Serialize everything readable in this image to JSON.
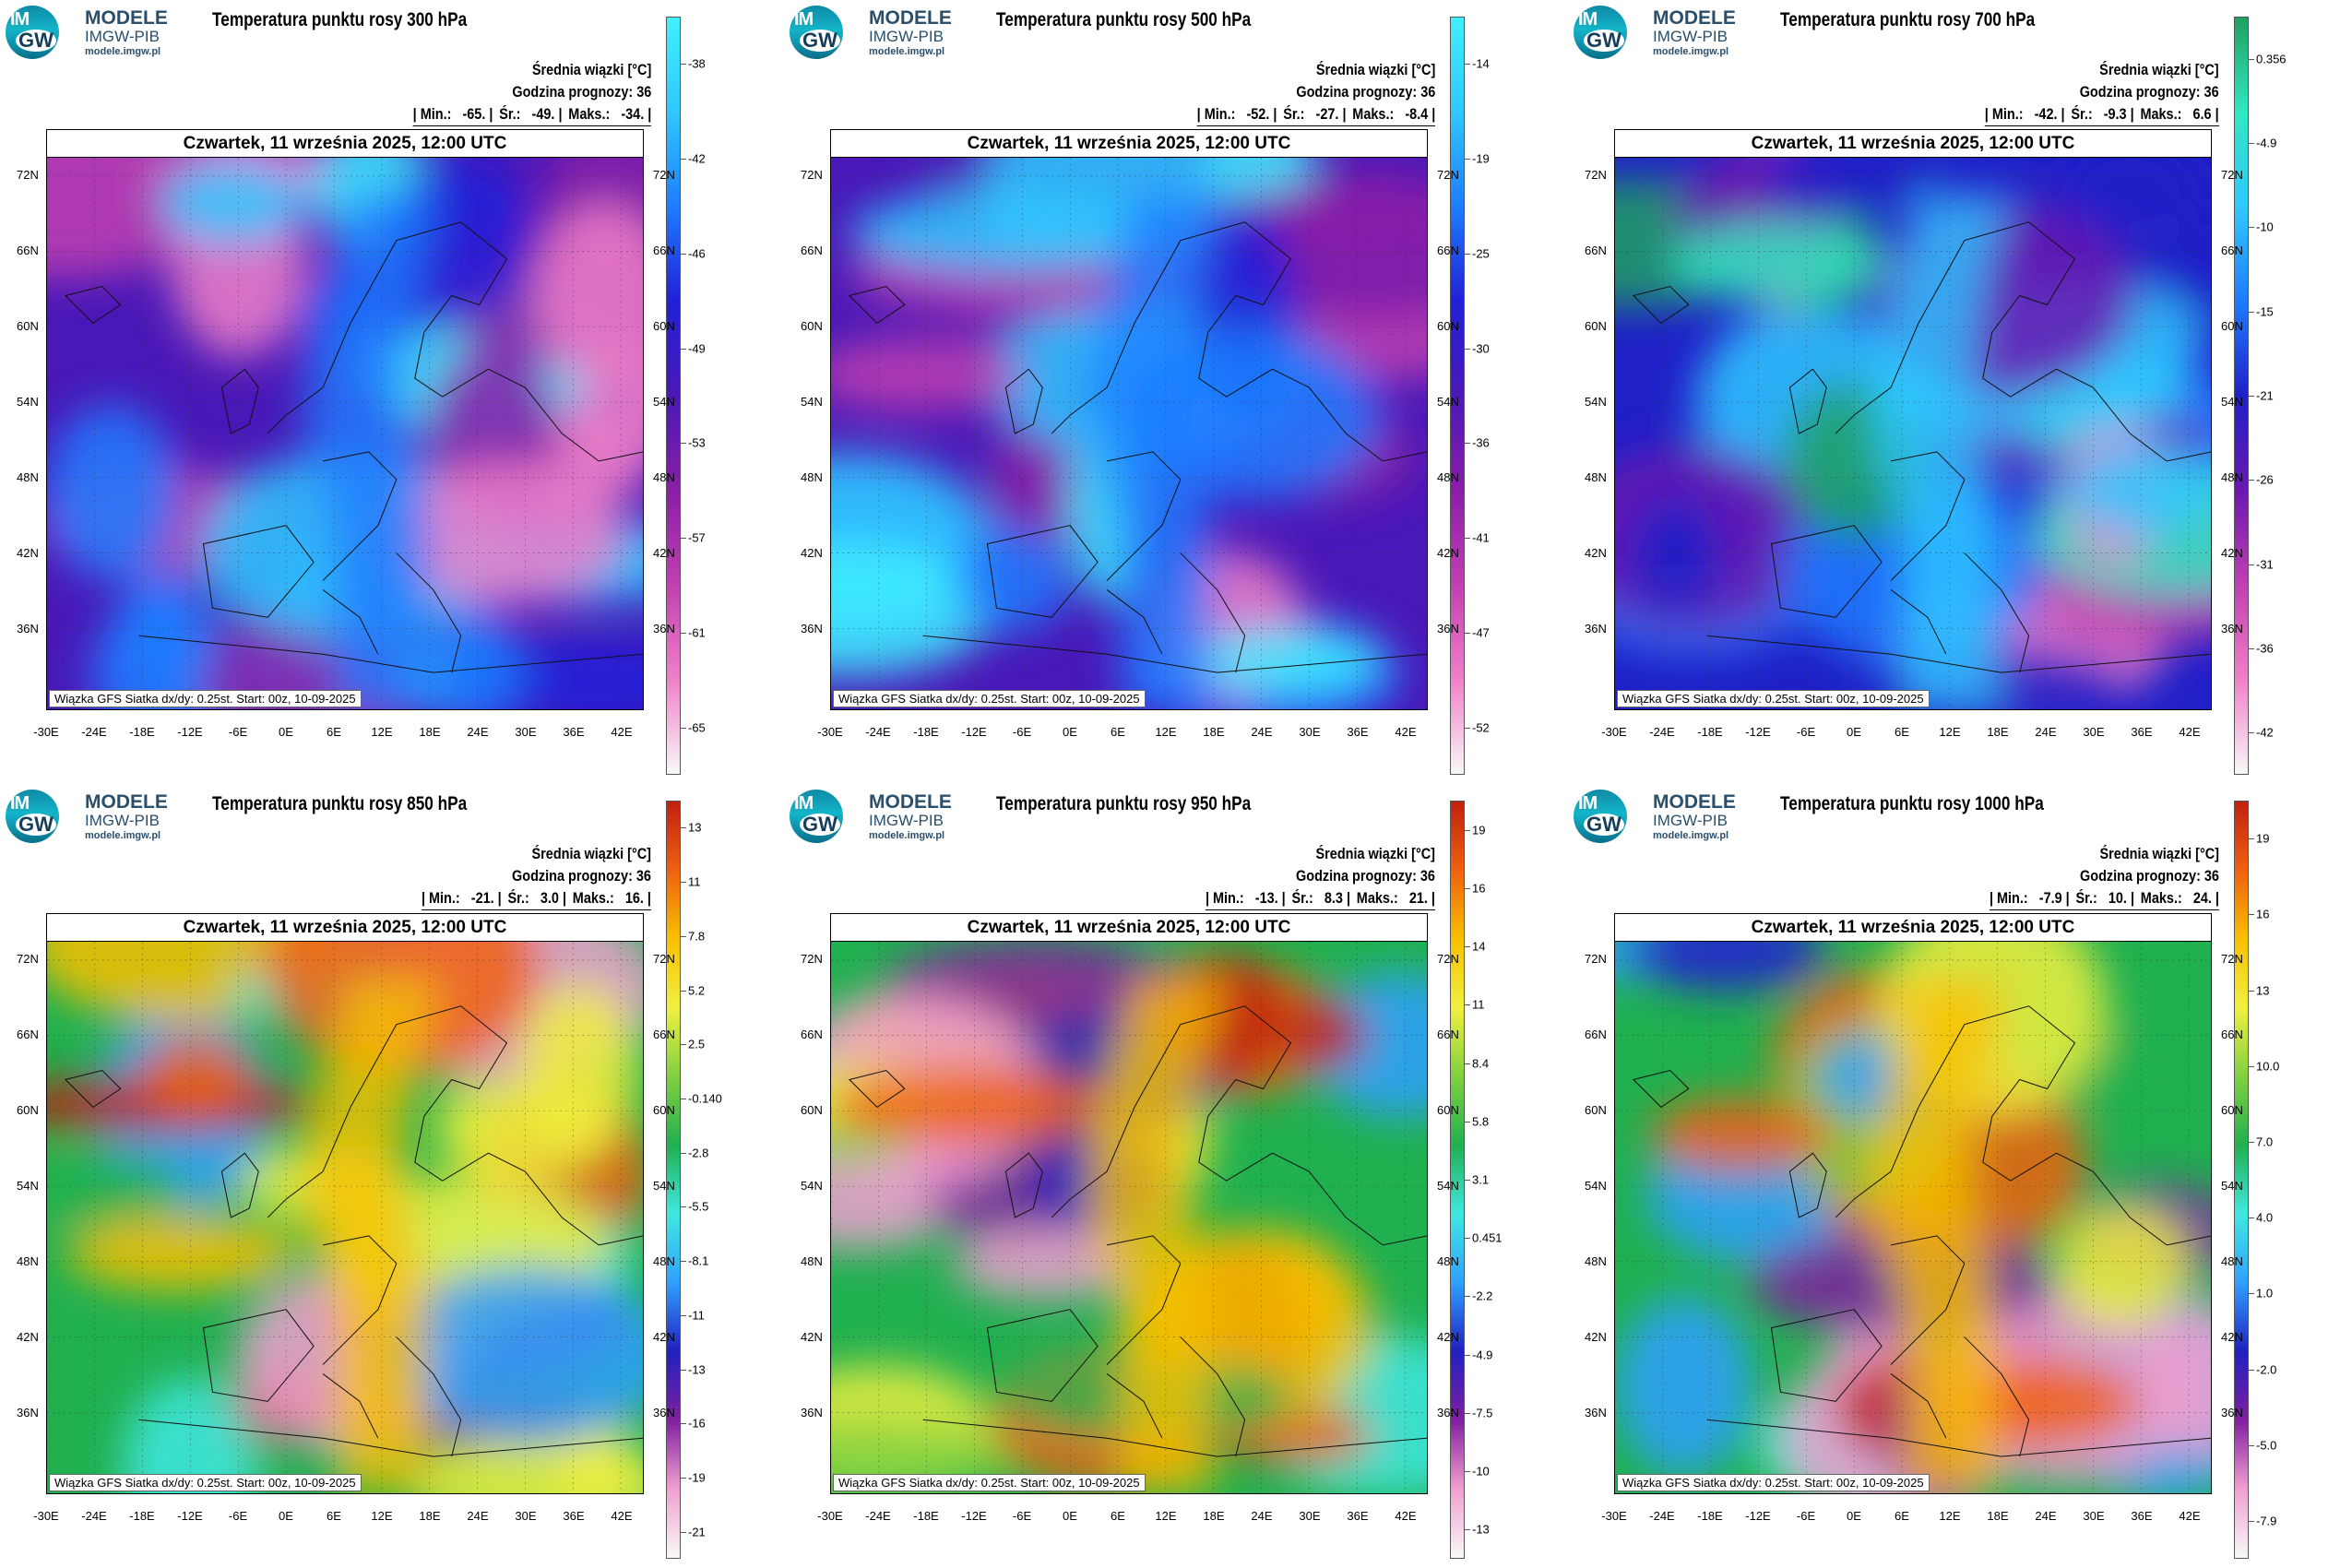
{
  "logo": {
    "line1": "MODELE",
    "line2": "IMGW-PIB",
    "line3": "modele.imgw.pl",
    "mark_top": "IM",
    "mark_bottom": "GW"
  },
  "common": {
    "unit_label": "Średnia wiązki [°C]",
    "forecast_label": "Godzina prognozy: 36",
    "date_label": "Czwartek, 11 września 2025, 12:00 UTC",
    "footer": "Wiązka GFS Siatka dx/dy: 0.25st. Start: 00z, 10-09-2025",
    "lat_labels": [
      "72N",
      "66N",
      "60N",
      "54N",
      "48N",
      "42N",
      "36N"
    ],
    "lon_labels": [
      "-30E",
      "-24E",
      "-18E",
      "-12E",
      "-6E",
      "0E",
      "6E",
      "12E",
      "18E",
      "24E",
      "30E",
      "36E",
      "42E"
    ]
  },
  "panels": [
    {
      "title": "Temperatura punktu rosy 300 hPa",
      "min": "-65.",
      "mean": "-49.",
      "max": "-34.",
      "palette": "cold",
      "colorbar_labels": [
        "-38",
        "-42",
        "-46",
        "-49",
        "-53",
        "-57",
        "-61",
        "-65"
      ]
    },
    {
      "title": "Temperatura punktu rosy 500 hPa",
      "min": "-52.",
      "mean": "-27.",
      "max": "-8.4",
      "palette": "cold",
      "colorbar_labels": [
        "-14",
        "-19",
        "-25",
        "-30",
        "-36",
        "-41",
        "-47",
        "-52"
      ]
    },
    {
      "title": "Temperatura punktu rosy 700 hPa",
      "min": "-42.",
      "mean": "-9.3",
      "max": "6.6",
      "palette": "cold_green",
      "colorbar_labels": [
        "0.356",
        "-4.9",
        "-10",
        "-15",
        "-21",
        "-26",
        "-31",
        "-36",
        "-42"
      ]
    },
    {
      "title": "Temperatura punktu rosy 850 hPa",
      "min": "-21.",
      "mean": "3.0",
      "max": "16.",
      "palette": "warm",
      "colorbar_labels": [
        "13",
        "11",
        "7.8",
        "5.2",
        "2.5",
        "-0.140",
        "-2.8",
        "-5.5",
        "-8.1",
        "-11",
        "-13",
        "-16",
        "-19",
        "-21"
      ]
    },
    {
      "title": "Temperatura punktu rosy 950 hPa",
      "min": "-13.",
      "mean": "8.3",
      "max": "21.",
      "palette": "warm",
      "colorbar_labels": [
        "19",
        "16",
        "14",
        "11",
        "8.4",
        "5.8",
        "3.1",
        "0.451",
        "-2.2",
        "-4.9",
        "-7.5",
        "-10",
        "-13"
      ]
    },
    {
      "title": "Temperatura punktu rosy 1000 hPa",
      "min": "-7.9",
      "mean": "10.",
      "max": "24.",
      "palette": "warm",
      "colorbar_labels": [
        "19",
        "16",
        "13",
        "10.0",
        "7.0",
        "4.0",
        "1.0",
        "-2.0",
        "-5.0",
        "-7.9"
      ]
    }
  ],
  "colors": {
    "cold": [
      "#40f0ff",
      "#30c8ff",
      "#1e7cff",
      "#2020d8",
      "#4a18b8",
      "#8a1ea8",
      "#c040b0",
      "#f080c8",
      "#f8f8f8"
    ],
    "cold_green": [
      "#20a060",
      "#30e8c0",
      "#30c8ff",
      "#1e7cff",
      "#2020c8",
      "#6a18b0",
      "#c040b0",
      "#f080c8",
      "#f8f8f8"
    ],
    "warm": [
      "#c02010",
      "#f06010",
      "#f8c000",
      "#f0f040",
      "#80d040",
      "#20b050",
      "#40e8e0",
      "#30a0ff",
      "#2020c0",
      "#8020a0",
      "#f0a0d0",
      "#f8f8f8"
    ]
  }
}
